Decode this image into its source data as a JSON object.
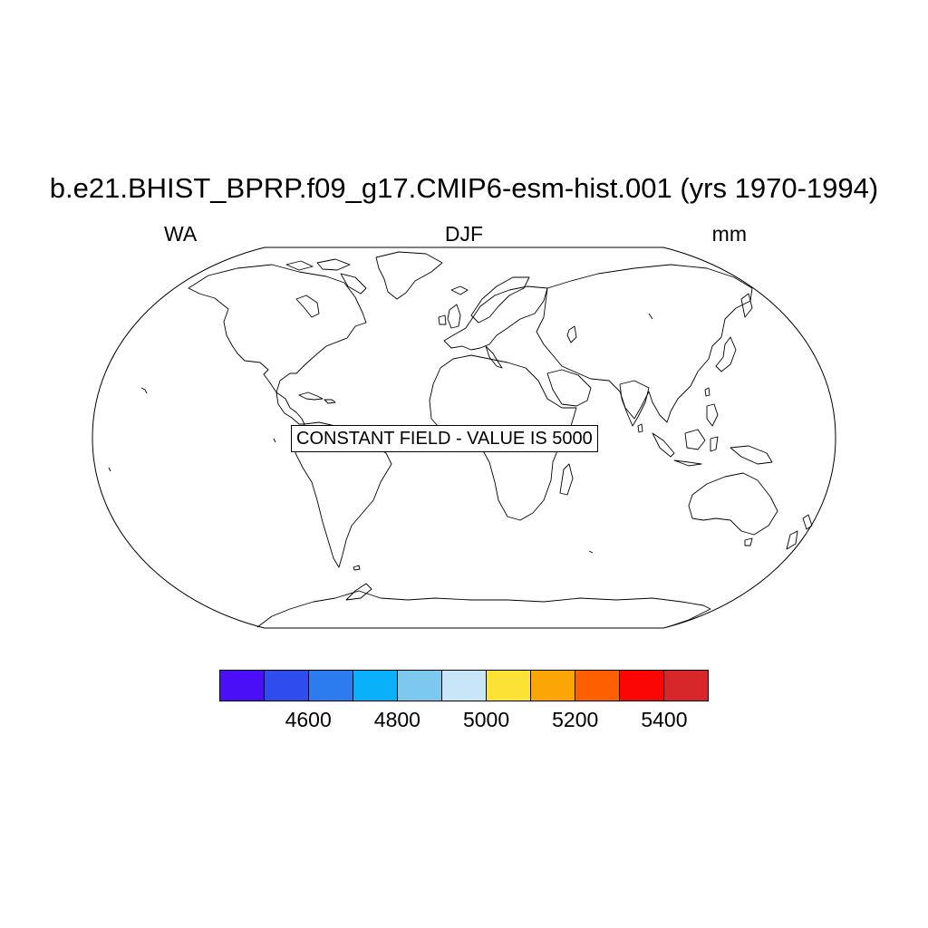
{
  "title": "b.e21.BHIST_BPRP.f09_g17.CMIP6-esm-hist.001 (yrs 1970-1994)",
  "left_label": "WA",
  "center_label": "DJF",
  "right_label": "mm",
  "constant_label": "CONSTANT FIELD - VALUE IS 5000",
  "projection": "robinson",
  "colorbar": {
    "colors": [
      "#4a0ff6",
      "#2f4ded",
      "#2c7cf0",
      "#0bb0fb",
      "#7cc8ef",
      "#c8e6f8",
      "#fde236",
      "#fca507",
      "#fd5f01",
      "#f90605",
      "#d8272b"
    ],
    "labels": [
      "4600",
      "4800",
      "5000",
      "5200",
      "5400"
    ]
  }
}
